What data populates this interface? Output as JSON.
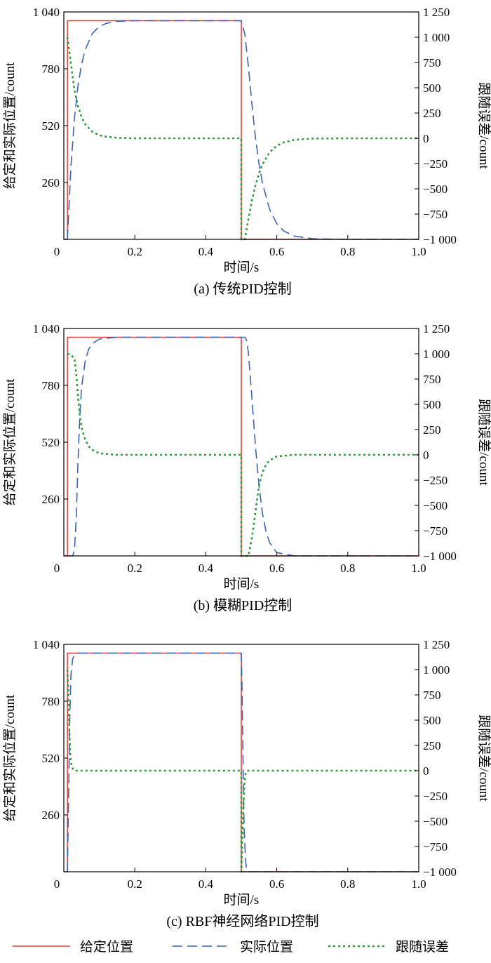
{
  "colors": {
    "setpoint": "#e8403a",
    "actual": "#3a64b5",
    "error": "#2e9a3a",
    "axes": "#000000"
  },
  "legend": [
    {
      "label": "给定位置",
      "style": "solid",
      "color": "#e8403a"
    },
    {
      "label": "实际位置",
      "style": "dashed",
      "color": "#3a64b5"
    },
    {
      "label": "跟随误差",
      "style": "dotted",
      "color": "#2e9a3a"
    }
  ],
  "chart_data": [
    {
      "type": "line",
      "caption": "(a) 传统PID控制",
      "xlabel": "时间/s",
      "ylabel": "给定和实际位置/count",
      "y2label": "跟随误差/count",
      "xlim": [
        0,
        1.0
      ],
      "ylim": [
        0,
        1040
      ],
      "y2lim": [
        -1000,
        1250
      ],
      "xticks": [
        "0",
        "0.2",
        "0.4",
        "0.6",
        "0.8",
        "1.0"
      ],
      "yticks": [
        "260",
        "520",
        "780",
        "1 040"
      ],
      "y2ticks": [
        "−1 000",
        "−750",
        "−500",
        "−250",
        "0",
        "250",
        "500",
        "750",
        "1 000",
        "1 250"
      ],
      "series": [
        {
          "name": "给定位置",
          "axis": "left",
          "x": [
            0,
            0.01,
            0.01,
            0.5,
            0.5,
            1.0
          ],
          "y": [
            0,
            0,
            1000,
            1000,
            0,
            0
          ]
        },
        {
          "name": "实际位置",
          "axis": "left",
          "x": [
            0.01,
            0.02,
            0.03,
            0.04,
            0.05,
            0.06,
            0.08,
            0.1,
            0.12,
            0.15,
            0.2,
            0.3,
            0.4,
            0.5,
            0.51,
            0.52,
            0.53,
            0.54,
            0.55,
            0.56,
            0.58,
            0.6,
            0.62,
            0.65,
            0.7,
            0.8,
            1.0
          ],
          "y": [
            0,
            332,
            554,
            702,
            801,
            866,
            941,
            974,
            988,
            997,
            1000,
            1000,
            1000,
            1000,
            938,
            791,
            618,
            465,
            345,
            254,
            136,
            72,
            38,
            15,
            3,
            0,
            0
          ]
        },
        {
          "name": "跟随误差",
          "axis": "right",
          "x": [
            0.01,
            0.02,
            0.03,
            0.04,
            0.05,
            0.06,
            0.08,
            0.1,
            0.12,
            0.15,
            0.2,
            0.3,
            0.4,
            0.5,
            0.5,
            0.51,
            0.52,
            0.53,
            0.54,
            0.55,
            0.56,
            0.58,
            0.6,
            0.62,
            0.65,
            0.7,
            0.8,
            1.0
          ],
          "y": [
            1000,
            740,
            475,
            320,
            210,
            140,
            65,
            30,
            15,
            5,
            0,
            0,
            0,
            0,
            -1000,
            -1000,
            -800,
            -615,
            -465,
            -345,
            -255,
            -138,
            -75,
            -40,
            -15,
            -3,
            0,
            0
          ]
        }
      ]
    },
    {
      "type": "line",
      "caption": "(b) 模糊PID控制",
      "xlabel": "时间/s",
      "ylabel": "给定和实际位置/count",
      "y2label": "跟随误差/count",
      "xlim": [
        0,
        1.0
      ],
      "ylim": [
        0,
        1040
      ],
      "y2lim": [
        -1000,
        1250
      ],
      "xticks": [
        "0",
        "0.2",
        "0.4",
        "0.6",
        "0.8",
        "1.0"
      ],
      "yticks": [
        "260",
        "520",
        "780",
        "1 040"
      ],
      "y2ticks": [
        "−1 000",
        "−750",
        "−500",
        "−250",
        "0",
        "250",
        "500",
        "750",
        "1 000",
        "1 250"
      ],
      "series": [
        {
          "name": "给定位置",
          "axis": "left",
          "x": [
            0,
            0.01,
            0.01,
            0.5,
            0.5,
            1.0
          ],
          "y": [
            0,
            0,
            1000,
            1000,
            0,
            0
          ]
        },
        {
          "name": "实际位置",
          "axis": "left",
          "x": [
            0.01,
            0.025,
            0.03,
            0.035,
            0.04,
            0.045,
            0.05,
            0.06,
            0.07,
            0.08,
            0.1,
            0.15,
            0.5,
            0.51,
            0.515,
            0.52,
            0.53,
            0.54,
            0.55,
            0.56,
            0.57,
            0.58,
            0.6,
            0.65,
            1.0
          ],
          "y": [
            0,
            0,
            30,
            170,
            430,
            640,
            770,
            890,
            945,
            970,
            992,
            1000,
            1000,
            1000,
            985,
            930,
            720,
            500,
            320,
            190,
            110,
            60,
            15,
            0,
            0
          ]
        },
        {
          "name": "跟随误差",
          "axis": "right",
          "x": [
            0.01,
            0.02,
            0.03,
            0.035,
            0.04,
            0.045,
            0.05,
            0.06,
            0.07,
            0.08,
            0.1,
            0.15,
            0.5,
            0.5,
            0.52,
            0.53,
            0.54,
            0.55,
            0.56,
            0.57,
            0.58,
            0.6,
            0.65,
            1.0
          ],
          "y": [
            1000,
            990,
            950,
            800,
            580,
            390,
            270,
            150,
            85,
            50,
            15,
            0,
            0,
            -1000,
            -1000,
            -820,
            -560,
            -300,
            -170,
            -95,
            -55,
            -15,
            0,
            0
          ]
        }
      ]
    },
    {
      "type": "line",
      "caption": "(c) RBF神经网络PID控制",
      "xlabel": "时间/s",
      "ylabel": "给定和实际位置/count",
      "y2label": "跟随误差/count",
      "xlim": [
        0,
        1.0
      ],
      "ylim": [
        0,
        1040
      ],
      "y2lim": [
        -1000,
        1250
      ],
      "xticks": [
        "0",
        "0.2",
        "0.4",
        "0.6",
        "0.8",
        "1.0"
      ],
      "yticks": [
        "260",
        "520",
        "780",
        "1 040"
      ],
      "y2ticks": [
        "−1 000",
        "−750",
        "−500",
        "−250",
        "0",
        "250",
        "500",
        "750",
        "1 000",
        "1 250"
      ],
      "series": [
        {
          "name": "给定位置",
          "axis": "left",
          "x": [
            0,
            0.01,
            0.01,
            0.5,
            0.5,
            1.0
          ],
          "y": [
            0,
            0,
            1000,
            1000,
            0,
            0
          ]
        },
        {
          "name": "实际位置",
          "axis": "left",
          "x": [
            0.01,
            0.013,
            0.016,
            0.02,
            0.025,
            0.03,
            0.04,
            0.5,
            0.502,
            0.505,
            0.508,
            0.512,
            0.515,
            0.52,
            0.53,
            1.0
          ],
          "y": [
            0,
            300,
            650,
            900,
            975,
            992,
            1000,
            1000,
            850,
            500,
            200,
            50,
            10,
            0,
            0,
            0
          ]
        },
        {
          "name": "跟随误差",
          "axis": "right",
          "x": [
            0.01,
            0.012,
            0.015,
            0.018,
            0.02,
            0.025,
            0.03,
            0.5,
            0.5,
            0.503,
            0.506,
            0.509,
            0.512,
            0.515,
            0.52,
            1.0
          ],
          "y": [
            1000,
            800,
            450,
            180,
            80,
            20,
            0,
            0,
            -1000,
            -700,
            -350,
            -120,
            -30,
            -5,
            0,
            0
          ]
        }
      ]
    }
  ]
}
